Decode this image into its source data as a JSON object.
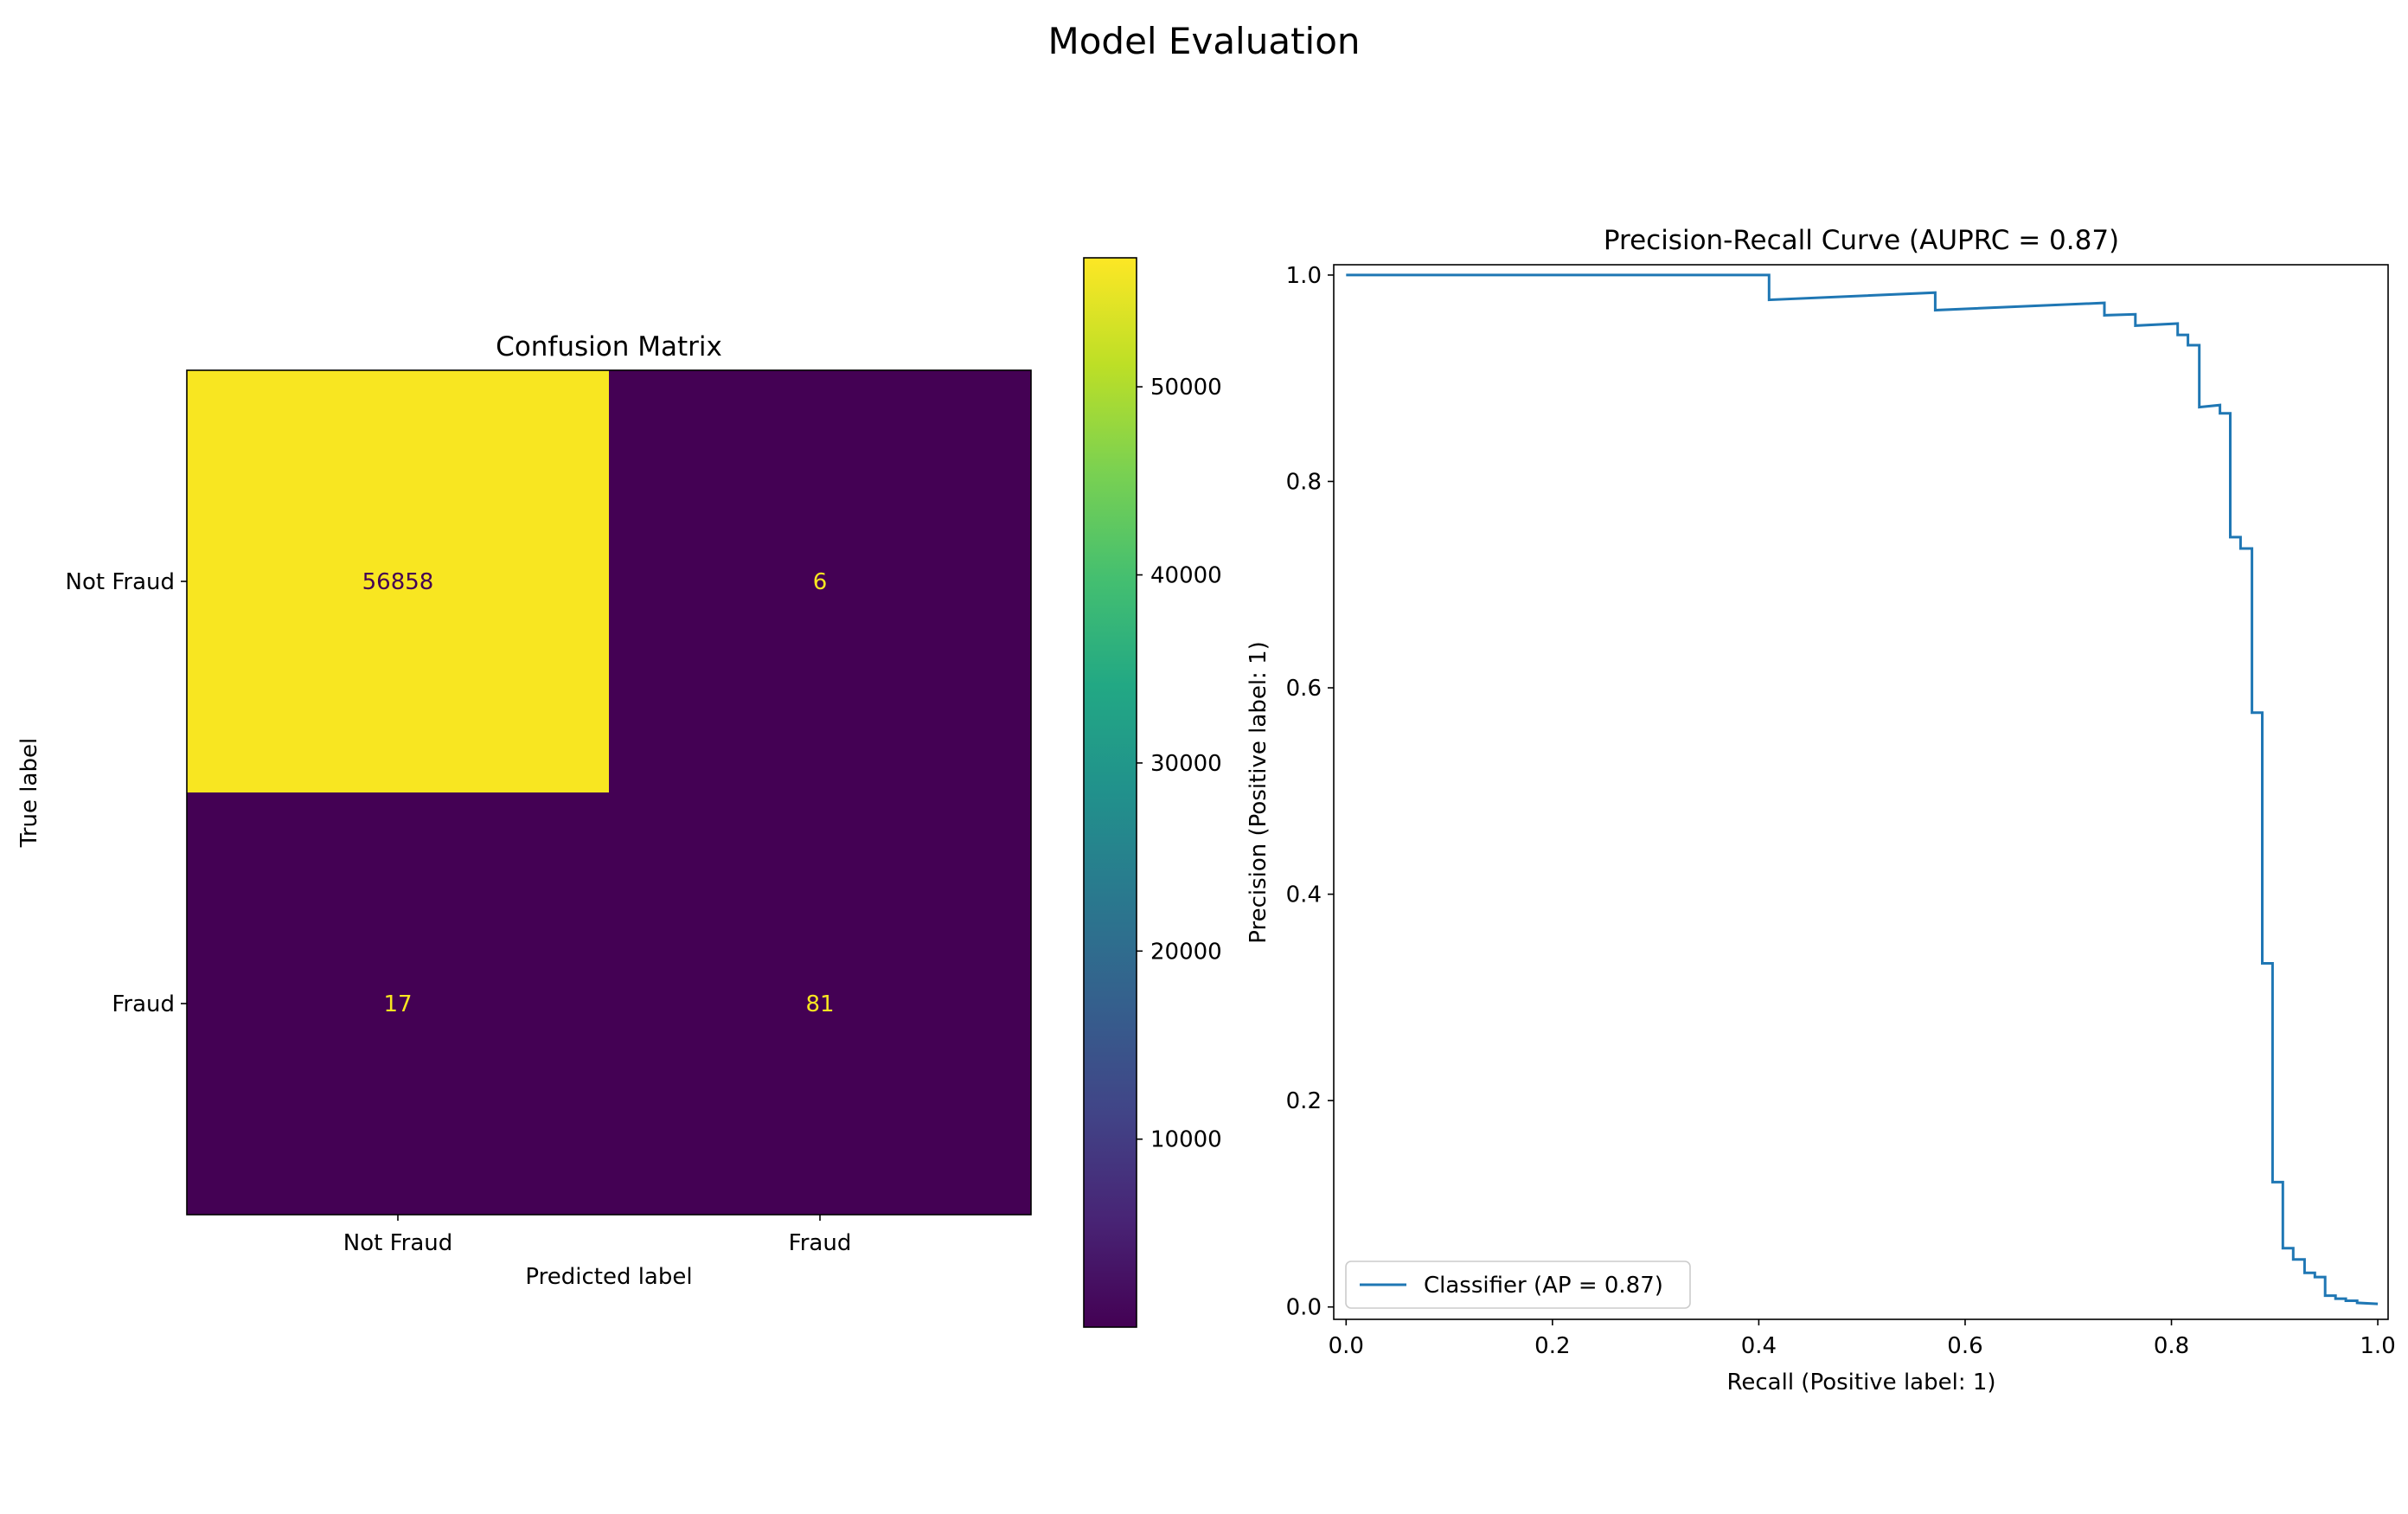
{
  "figure": {
    "title": "Model Evaluation"
  },
  "chart_data": [
    {
      "type": "heatmap",
      "title": "Confusion Matrix",
      "xlabel": "Predicted label",
      "ylabel": "True label",
      "x_categories": [
        "Not Fraud",
        "Fraud"
      ],
      "y_categories": [
        "Not Fraud",
        "Fraud"
      ],
      "values": [
        [
          56858,
          6
        ],
        [
          17,
          81
        ]
      ],
      "colormap": "viridis",
      "colorbar": {
        "ticks": [
          10000,
          20000,
          30000,
          40000,
          50000
        ],
        "tick_labels": [
          "10000",
          "20000",
          "30000",
          "40000",
          "50000"
        ],
        "range": [
          6,
          56858
        ]
      },
      "colors": {
        "high": "#f8e621",
        "low": "#440154",
        "text_on_high": "#440154",
        "text_on_low": "#f8e621"
      }
    },
    {
      "type": "line",
      "title": "Precision-Recall Curve (AUPRC = 0.87)",
      "xlabel": "Recall (Positive label: 1)",
      "ylabel": "Precision (Positive label: 1)",
      "xlim": [
        -0.012,
        1.01
      ],
      "ylim": [
        -0.012,
        1.01
      ],
      "x_ticks": [
        "0.0",
        "0.2",
        "0.4",
        "0.6",
        "0.8",
        "1.0"
      ],
      "y_ticks": [
        "0.0",
        "0.2",
        "0.4",
        "0.6",
        "0.8",
        "1.0"
      ],
      "grid": false,
      "legend_position": "lower-left",
      "series": [
        {
          "name": "Classifier (AP = 0.87)",
          "color": "#1f77b4",
          "drawstyle": "steps",
          "points": [
            [
              0.0,
              1.0
            ],
            [
              0.41,
              1.0
            ],
            [
              0.41,
              0.976
            ],
            [
              0.571,
              0.983
            ],
            [
              0.571,
              0.966
            ],
            [
              0.735,
              0.973
            ],
            [
              0.735,
              0.961
            ],
            [
              0.765,
              0.962
            ],
            [
              0.765,
              0.951
            ],
            [
              0.806,
              0.953
            ],
            [
              0.806,
              0.942
            ],
            [
              0.816,
              0.942
            ],
            [
              0.816,
              0.932
            ],
            [
              0.827,
              0.932
            ],
            [
              0.827,
              0.872
            ],
            [
              0.847,
              0.874
            ],
            [
              0.847,
              0.866
            ],
            [
              0.857,
              0.866
            ],
            [
              0.857,
              0.746
            ],
            [
              0.867,
              0.746
            ],
            [
              0.867,
              0.735
            ],
            [
              0.878,
              0.735
            ],
            [
              0.878,
              0.576
            ],
            [
              0.888,
              0.576
            ],
            [
              0.888,
              0.333
            ],
            [
              0.898,
              0.333
            ],
            [
              0.898,
              0.121
            ],
            [
              0.908,
              0.121
            ],
            [
              0.908,
              0.057
            ],
            [
              0.918,
              0.057
            ],
            [
              0.918,
              0.046
            ],
            [
              0.929,
              0.046
            ],
            [
              0.929,
              0.033
            ],
            [
              0.939,
              0.033
            ],
            [
              0.939,
              0.029
            ],
            [
              0.949,
              0.029
            ],
            [
              0.949,
              0.011
            ],
            [
              0.959,
              0.011
            ],
            [
              0.959,
              0.008
            ],
            [
              0.969,
              0.008
            ],
            [
              0.969,
              0.006
            ],
            [
              0.98,
              0.006
            ],
            [
              0.98,
              0.004
            ],
            [
              1.0,
              0.003
            ]
          ]
        }
      ]
    }
  ]
}
